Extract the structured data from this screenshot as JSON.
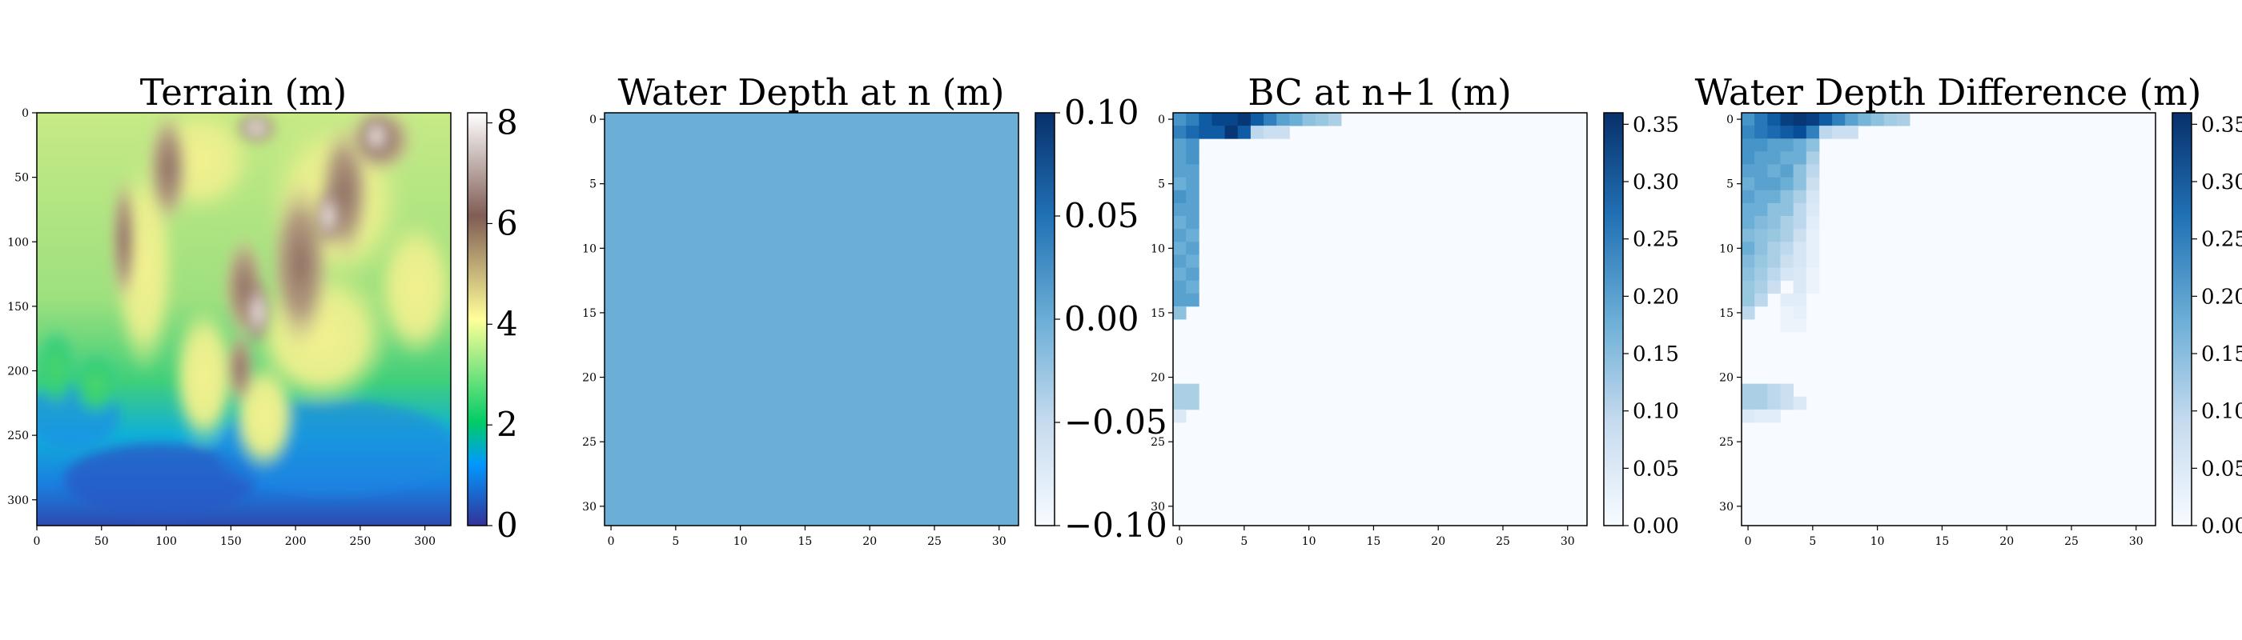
{
  "chart_data": [
    {
      "type": "heatmap",
      "title": "Terrain (m)",
      "colormap": "terrain",
      "xticks": [
        0,
        50,
        100,
        150,
        200,
        250,
        300
      ],
      "yticks": [
        0,
        50,
        100,
        150,
        200,
        250,
        300
      ],
      "xlim": [
        0,
        320
      ],
      "ylim": [
        320,
        0
      ],
      "colorbar": {
        "min": 0,
        "max": 8.2,
        "ticks": [
          "0",
          "2",
          "4",
          "6",
          "8"
        ],
        "tick_values": [
          0,
          2,
          4,
          6,
          8
        ]
      }
    },
    {
      "type": "heatmap",
      "title": "Water Depth at n (m)",
      "colormap": "Blues",
      "uniform_value": 0,
      "xticks": [
        0,
        5,
        10,
        15,
        20,
        25,
        30
      ],
      "yticks": [
        0,
        5,
        10,
        15,
        20,
        25,
        30
      ],
      "grid_size": 32,
      "colorbar": {
        "min": -0.1,
        "max": 0.1,
        "ticks": [
          "0.10",
          "0.05",
          "0.00",
          "−0.05",
          "−0.10"
        ],
        "tick_values": [
          0.1,
          0.05,
          0,
          -0.05,
          -0.1
        ]
      }
    },
    {
      "type": "heatmap",
      "title": "BC at n+1 (m)",
      "colormap": "Blues",
      "xticks": [
        0,
        5,
        10,
        15,
        20,
        25,
        30
      ],
      "yticks": [
        0,
        5,
        10,
        15,
        20,
        25,
        30
      ],
      "grid_size": 32,
      "background_value": 0,
      "cells": [
        [
          0,
          0,
          0.22
        ],
        [
          0,
          1,
          0.25
        ],
        [
          0,
          2,
          0.3
        ],
        [
          0,
          3,
          0.33
        ],
        [
          0,
          4,
          0.33
        ],
        [
          0,
          5,
          0.35
        ],
        [
          0,
          6,
          0.3
        ],
        [
          0,
          7,
          0.25
        ],
        [
          0,
          8,
          0.2
        ],
        [
          0,
          9,
          0.18
        ],
        [
          0,
          10,
          0.15
        ],
        [
          0,
          11,
          0.14
        ],
        [
          0,
          12,
          0.12
        ],
        [
          1,
          0,
          0.25
        ],
        [
          1,
          1,
          0.28
        ],
        [
          1,
          2,
          0.3
        ],
        [
          1,
          3,
          0.3
        ],
        [
          1,
          4,
          0.35
        ],
        [
          1,
          5,
          0.3
        ],
        [
          1,
          6,
          0.1
        ],
        [
          1,
          7,
          0.08
        ],
        [
          1,
          8,
          0.08
        ],
        [
          2,
          0,
          0.2
        ],
        [
          2,
          1,
          0.22
        ],
        [
          3,
          0,
          0.2
        ],
        [
          3,
          1,
          0.22
        ],
        [
          4,
          0,
          0.2
        ],
        [
          4,
          1,
          0.2
        ],
        [
          5,
          0,
          0.18
        ],
        [
          5,
          1,
          0.2
        ],
        [
          6,
          0,
          0.22
        ],
        [
          6,
          1,
          0.2
        ],
        [
          7,
          0,
          0.2
        ],
        [
          7,
          1,
          0.2
        ],
        [
          8,
          0,
          0.18
        ],
        [
          8,
          1,
          0.2
        ],
        [
          9,
          0,
          0.2
        ],
        [
          9,
          1,
          0.18
        ],
        [
          10,
          0,
          0.18
        ],
        [
          10,
          1,
          0.2
        ],
        [
          11,
          0,
          0.2
        ],
        [
          11,
          1,
          0.18
        ],
        [
          12,
          0,
          0.18
        ],
        [
          12,
          1,
          0.2
        ],
        [
          13,
          0,
          0.2
        ],
        [
          13,
          1,
          0.18
        ],
        [
          14,
          0,
          0.2
        ],
        [
          14,
          1,
          0.2
        ],
        [
          15,
          0,
          0.15
        ],
        [
          21,
          0,
          0.12
        ],
        [
          21,
          1,
          0.12
        ],
        [
          22,
          0,
          0.12
        ],
        [
          22,
          1,
          0.12
        ],
        [
          23,
          0,
          0.05
        ]
      ],
      "colorbar": {
        "min": 0,
        "max": 0.36,
        "ticks": [
          "0.35",
          "0.30",
          "0.25",
          "0.20",
          "0.15",
          "0.10",
          "0.05",
          "0.00"
        ],
        "tick_values": [
          0.35,
          0.3,
          0.25,
          0.2,
          0.15,
          0.1,
          0.05,
          0
        ]
      }
    },
    {
      "type": "heatmap",
      "title": "Water Depth Difference (m)",
      "colormap": "Blues",
      "xticks": [
        0,
        5,
        10,
        15,
        20,
        25,
        30
      ],
      "yticks": [
        0,
        5,
        10,
        15,
        20,
        25,
        30
      ],
      "grid_size": 32,
      "background_value": 0,
      "cells": [
        [
          0,
          0,
          0.22
        ],
        [
          0,
          1,
          0.26
        ],
        [
          0,
          2,
          0.3
        ],
        [
          0,
          3,
          0.34
        ],
        [
          0,
          4,
          0.35
        ],
        [
          0,
          5,
          0.34
        ],
        [
          0,
          6,
          0.3
        ],
        [
          0,
          7,
          0.25
        ],
        [
          0,
          8,
          0.2
        ],
        [
          0,
          9,
          0.17
        ],
        [
          0,
          10,
          0.15
        ],
        [
          0,
          11,
          0.13
        ],
        [
          0,
          12,
          0.12
        ],
        [
          1,
          0,
          0.24
        ],
        [
          1,
          1,
          0.26
        ],
        [
          1,
          2,
          0.28
        ],
        [
          1,
          3,
          0.3
        ],
        [
          1,
          4,
          0.32
        ],
        [
          1,
          5,
          0.25
        ],
        [
          1,
          6,
          0.1
        ],
        [
          1,
          7,
          0.08
        ],
        [
          1,
          8,
          0.08
        ],
        [
          2,
          0,
          0.22
        ],
        [
          2,
          1,
          0.22
        ],
        [
          2,
          2,
          0.2
        ],
        [
          2,
          3,
          0.2
        ],
        [
          2,
          4,
          0.18
        ],
        [
          2,
          5,
          0.15
        ],
        [
          3,
          0,
          0.22
        ],
        [
          3,
          1,
          0.2
        ],
        [
          3,
          2,
          0.2
        ],
        [
          3,
          3,
          0.18
        ],
        [
          3,
          4,
          0.18
        ],
        [
          3,
          5,
          0.12
        ],
        [
          4,
          0,
          0.2
        ],
        [
          4,
          1,
          0.2
        ],
        [
          4,
          2,
          0.18
        ],
        [
          4,
          3,
          0.2
        ],
        [
          4,
          4,
          0.15
        ],
        [
          4,
          5,
          0.1
        ],
        [
          5,
          0,
          0.18
        ],
        [
          5,
          1,
          0.2
        ],
        [
          5,
          2,
          0.2
        ],
        [
          5,
          3,
          0.18
        ],
        [
          5,
          4,
          0.15
        ],
        [
          5,
          5,
          0.08
        ],
        [
          6,
          0,
          0.2
        ],
        [
          6,
          1,
          0.18
        ],
        [
          6,
          2,
          0.18
        ],
        [
          6,
          3,
          0.15
        ],
        [
          6,
          4,
          0.12
        ],
        [
          6,
          5,
          0.06
        ],
        [
          7,
          0,
          0.18
        ],
        [
          7,
          1,
          0.18
        ],
        [
          7,
          2,
          0.15
        ],
        [
          7,
          3,
          0.15
        ],
        [
          7,
          4,
          0.1
        ],
        [
          7,
          5,
          0.05
        ],
        [
          8,
          0,
          0.18
        ],
        [
          8,
          1,
          0.16
        ],
        [
          8,
          2,
          0.15
        ],
        [
          8,
          3,
          0.12
        ],
        [
          8,
          4,
          0.1
        ],
        [
          8,
          5,
          0.04
        ],
        [
          9,
          0,
          0.16
        ],
        [
          9,
          1,
          0.15
        ],
        [
          9,
          2,
          0.14
        ],
        [
          9,
          3,
          0.12
        ],
        [
          9,
          4,
          0.08
        ],
        [
          9,
          5,
          0.03
        ],
        [
          10,
          0,
          0.18
        ],
        [
          10,
          1,
          0.15
        ],
        [
          10,
          2,
          0.12
        ],
        [
          10,
          3,
          0.1
        ],
        [
          10,
          4,
          0.06
        ],
        [
          10,
          5,
          0.03
        ],
        [
          11,
          0,
          0.16
        ],
        [
          11,
          1,
          0.14
        ],
        [
          11,
          2,
          0.12
        ],
        [
          11,
          3,
          0.08
        ],
        [
          11,
          4,
          0.06
        ],
        [
          11,
          5,
          0.03
        ],
        [
          12,
          0,
          0.15
        ],
        [
          12,
          1,
          0.13
        ],
        [
          12,
          2,
          0.1
        ],
        [
          12,
          3,
          0.06
        ],
        [
          12,
          4,
          0.05
        ],
        [
          12,
          5,
          0.02
        ],
        [
          13,
          0,
          0.14
        ],
        [
          13,
          1,
          0.12
        ],
        [
          13,
          2,
          0.08
        ],
        [
          13,
          4,
          0.05
        ],
        [
          13,
          5,
          0.02
        ],
        [
          14,
          0,
          0.14
        ],
        [
          14,
          1,
          0.1
        ],
        [
          14,
          3,
          0.04
        ],
        [
          14,
          4,
          0.04
        ],
        [
          15,
          0,
          0.1
        ],
        [
          15,
          3,
          0.02
        ],
        [
          15,
          4,
          0.03
        ],
        [
          16,
          3,
          0.02
        ],
        [
          16,
          4,
          0.02
        ],
        [
          21,
          0,
          0.12
        ],
        [
          21,
          1,
          0.12
        ],
        [
          21,
          2,
          0.1
        ],
        [
          21,
          3,
          0.08
        ],
        [
          22,
          0,
          0.12
        ],
        [
          22,
          1,
          0.12
        ],
        [
          22,
          2,
          0.1
        ],
        [
          22,
          3,
          0.08
        ],
        [
          22,
          4,
          0.05
        ],
        [
          23,
          0,
          0.05
        ],
        [
          23,
          1,
          0.04
        ],
        [
          23,
          2,
          0.04
        ]
      ],
      "colorbar": {
        "min": 0,
        "max": 0.36,
        "ticks": [
          "0.35",
          "0.30",
          "0.25",
          "0.20",
          "0.15",
          "0.10",
          "0.05",
          "0.00"
        ],
        "tick_values": [
          0.35,
          0.3,
          0.25,
          0.2,
          0.15,
          0.1,
          0.05,
          0
        ]
      }
    }
  ]
}
